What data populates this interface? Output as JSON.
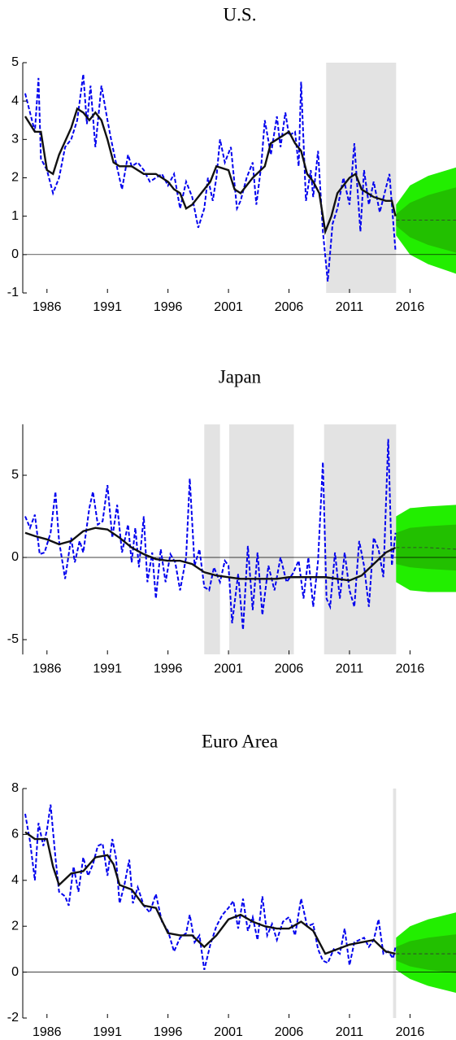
{
  "chart_data": [
    {
      "type": "line",
      "title": "U.S.",
      "xlim": [
        1984,
        2019.8
      ],
      "ylim": [
        -1,
        5
      ],
      "xticks": [
        1986,
        1991,
        1996,
        2001,
        2006,
        2011,
        2016
      ],
      "yticks": [
        -1,
        0,
        1,
        2,
        3,
        4,
        5
      ],
      "reference_line": 0,
      "shade_color": "#e3e3e3",
      "shaded": [
        [
          2009.07,
          2014.85
        ]
      ],
      "series": [
        {
          "color": "#0000ee",
          "style": "dashed",
          "x": [
            1984.2,
            1985,
            1985.3,
            1985.5,
            1986,
            1986.5,
            1987,
            1987.5,
            1988,
            1988.5,
            1989,
            1989.3,
            1989.6,
            1990,
            1990.5,
            1991,
            1991.3,
            1991.7,
            1992.2,
            1992.7,
            1993,
            1993.5,
            1994,
            1994.5,
            1995,
            1995.5,
            1996,
            1996.5,
            1997,
            1997.5,
            1998,
            1998.5,
            1999,
            1999.3,
            1999.7,
            2000,
            2000.3,
            2000.7,
            2001.2,
            2001.7,
            2002,
            2002.5,
            2003,
            2003.3,
            2003.7,
            2004,
            2004.5,
            2005,
            2005.3,
            2005.7,
            2006,
            2006.5,
            2006.8,
            2007,
            2007.4,
            2007.8,
            2008,
            2008.4,
            2008.8,
            2009.2,
            2009.6,
            2010,
            2010.5,
            2011,
            2011.4,
            2011.9,
            2012.2,
            2012.6,
            2013,
            2013.5,
            2013.9,
            2014.3,
            2014.8
          ],
          "values": [
            4.2,
            3.2,
            4.6,
            2.5,
            2.2,
            1.6,
            2.0,
            2.8,
            3.0,
            3.5,
            4.7,
            3.4,
            4.4,
            2.8,
            4.4,
            3.5,
            3.0,
            2.4,
            1.7,
            2.6,
            2.3,
            2.4,
            2.2,
            1.9,
            2.0,
            2.1,
            1.8,
            2.1,
            1.2,
            1.9,
            1.5,
            0.7,
            1.2,
            2.0,
            1.4,
            2.0,
            3.0,
            2.4,
            2.8,
            1.2,
            1.4,
            2.0,
            2.4,
            1.3,
            2.3,
            3.5,
            2.6,
            3.6,
            2.8,
            3.7,
            3.1,
            3.2,
            2.3,
            4.5,
            1.4,
            2.2,
            1.5,
            2.7,
            0.6,
            -0.7,
            0.8,
            1.2,
            2.0,
            1.3,
            2.9,
            0.6,
            2.2,
            1.3,
            1.9,
            1.1,
            1.6,
            2.1,
            0.1
          ]
        },
        {
          "color": "#111111",
          "style": "solid",
          "x": [
            1984.2,
            1985,
            1985.5,
            1986,
            1986.5,
            1987,
            1988,
            1988.5,
            1989,
            1989.5,
            1990,
            1990.5,
            1991,
            1991.5,
            1992,
            1993,
            1994,
            1995,
            1996,
            1996.5,
            1997,
            1997.5,
            1998,
            1999,
            1999.5,
            2000,
            2001,
            2001.5,
            2002,
            2003,
            2004,
            2004.5,
            2005.5,
            2006,
            2006.5,
            2007,
            2007.5,
            2008,
            2008.5,
            2009,
            2009.5,
            2010,
            2011,
            2011.5,
            2012,
            2013,
            2014,
            2014.5,
            2014.8
          ],
          "values": [
            3.6,
            3.2,
            3.2,
            2.2,
            2.1,
            2.6,
            3.3,
            3.8,
            3.7,
            3.5,
            3.7,
            3.5,
            3.0,
            2.4,
            2.3,
            2.3,
            2.1,
            2.1,
            1.9,
            1.7,
            1.6,
            1.2,
            1.3,
            1.7,
            1.9,
            2.3,
            2.2,
            1.7,
            1.6,
            2.0,
            2.3,
            2.9,
            3.1,
            3.2,
            2.9,
            2.7,
            2.1,
            1.9,
            1.6,
            0.6,
            1.0,
            1.6,
            2.0,
            2.1,
            1.7,
            1.5,
            1.4,
            1.4,
            1.0
          ]
        }
      ],
      "forecast": {
        "x": [
          2014.85,
          2016,
          2017.5,
          2019.8
        ],
        "outer_color": "#22ee00",
        "inner_color": "#22c000",
        "outer_upper": [
          1.3,
          1.8,
          2.05,
          2.27
        ],
        "outer_lower": [
          0.5,
          0.0,
          -0.25,
          -0.5
        ],
        "inner_upper": [
          1.05,
          1.35,
          1.55,
          1.75
        ],
        "inner_lower": [
          0.75,
          0.45,
          0.25,
          0.05
        ],
        "median": [
          0.9,
          0.9,
          0.9,
          0.9
        ]
      }
    },
    {
      "type": "line",
      "title": "Japan",
      "xlim": [
        1984,
        2019.8
      ],
      "ylim": [
        -5.9,
        8.1
      ],
      "xticks": [
        1986,
        1991,
        1996,
        2001,
        2006,
        2011,
        2016
      ],
      "yticks": [
        -5,
        0,
        5
      ],
      "reference_line": 0,
      "shade_color": "#e3e3e3",
      "shaded": [
        [
          1999.0,
          2000.3
        ],
        [
          2001.06,
          2006.4
        ],
        [
          2008.9,
          2014.85
        ]
      ],
      "series": [
        {
          "color": "#0000ee",
          "style": "dashed",
          "x": [
            1984.2,
            1984.6,
            1985,
            1985.4,
            1985.8,
            1986.3,
            1986.7,
            1987,
            1987.5,
            1988,
            1988.3,
            1988.7,
            1989,
            1989.5,
            1989.8,
            1990.2,
            1990.6,
            1991,
            1991.4,
            1991.8,
            1992.2,
            1992.7,
            1993,
            1993.3,
            1993.6,
            1994,
            1994.3,
            1994.7,
            1995,
            1995.4,
            1995.8,
            1996.2,
            1996.6,
            1997,
            1997.5,
            1997.8,
            1998.2,
            1998.6,
            1999,
            1999.4,
            1999.8,
            2000.3,
            2000.7,
            2001,
            2001.3,
            2001.8,
            2002.2,
            2002.6,
            2003,
            2003.4,
            2003.8,
            2004.3,
            2004.8,
            2005.3,
            2005.8,
            2006.3,
            2006.8,
            2007.2,
            2007.6,
            2008,
            2008.4,
            2008.8,
            2009.1,
            2009.4,
            2009.8,
            2010.2,
            2010.6,
            2011,
            2011.4,
            2011.8,
            2012.2,
            2012.6,
            2013,
            2013.4,
            2013.8,
            2014.2,
            2014.5,
            2014.8
          ],
          "values": [
            2.5,
            1.8,
            2.6,
            0.2,
            0.3,
            1.5,
            4.0,
            1.0,
            -1.3,
            1.2,
            -0.3,
            1.0,
            0.3,
            3.0,
            4.0,
            2.0,
            2.2,
            4.4,
            1.2,
            3.2,
            0.3,
            2.0,
            -0.3,
            1.8,
            -0.6,
            2.5,
            -1.5,
            0.3,
            -2.5,
            0.5,
            -1.5,
            0.2,
            -0.3,
            -2.0,
            0.0,
            4.8,
            -0.5,
            0.5,
            -1.8,
            -2.0,
            -0.6,
            -1.5,
            -0.2,
            -0.5,
            -4.0,
            -1.0,
            -4.4,
            0.7,
            -3.2,
            0.3,
            -3.5,
            -0.5,
            -2.0,
            0.0,
            -1.5,
            -1.0,
            -0.2,
            -2.5,
            0.0,
            -3.0,
            -0.2,
            5.8,
            -2.5,
            -3.0,
            0.3,
            -2.5,
            0.3,
            -2.0,
            -3.0,
            1.0,
            -0.5,
            -3.0,
            1.2,
            0.5,
            -1.2,
            7.2,
            -0.5,
            1.5
          ]
        },
        {
          "color": "#111111",
          "style": "solid",
          "x": [
            1984.2,
            1985,
            1986,
            1987,
            1988,
            1989,
            1990,
            1991,
            1992,
            1993,
            1994,
            1995,
            1996,
            1997,
            1998,
            1999,
            2000,
            2001,
            2002,
            2003,
            2004,
            2005,
            2006,
            2007,
            2008,
            2009,
            2010,
            2011,
            2012,
            2013,
            2014,
            2014.8
          ],
          "values": [
            1.5,
            1.3,
            1.1,
            0.8,
            1.0,
            1.6,
            1.8,
            1.7,
            1.2,
            0.6,
            0.2,
            -0.1,
            -0.2,
            -0.2,
            -0.4,
            -0.9,
            -1.1,
            -1.2,
            -1.3,
            -1.3,
            -1.3,
            -1.3,
            -1.2,
            -1.2,
            -1.2,
            -1.2,
            -1.3,
            -1.4,
            -1.1,
            -0.4,
            0.3,
            0.6
          ]
        }
      ],
      "forecast": {
        "x": [
          2014.85,
          2016,
          2017.5,
          2019.8
        ],
        "outer_color": "#22ee00",
        "inner_color": "#22c000",
        "outer_upper": [
          2.5,
          3.0,
          3.1,
          3.2
        ],
        "outer_lower": [
          -1.5,
          -2.0,
          -2.1,
          -2.1
        ],
        "inner_upper": [
          1.5,
          1.8,
          1.9,
          2.0
        ],
        "inner_lower": [
          -0.4,
          -0.6,
          -0.7,
          -0.8
        ],
        "median": [
          0.6,
          0.6,
          0.6,
          0.5
        ]
      }
    },
    {
      "type": "line",
      "title": "Euro Area",
      "xlim": [
        1984,
        2019.8
      ],
      "ylim": [
        -2,
        8
      ],
      "xticks": [
        1986,
        1991,
        1996,
        2001,
        2006,
        2011,
        2016
      ],
      "yticks": [
        -2,
        0,
        2,
        4,
        6,
        8
      ],
      "reference_line": 0,
      "shade_color": "#e3e3e3",
      "shaded": [
        [
          2014.6,
          2014.85
        ]
      ],
      "series": [
        {
          "color": "#0000ee",
          "style": "dashed",
          "x": [
            1984.2,
            1984.6,
            1985,
            1985.3,
            1985.7,
            1986,
            1986.3,
            1986.7,
            1987,
            1987.5,
            1987.8,
            1988.2,
            1988.6,
            1989,
            1989.4,
            1989.8,
            1990.2,
            1990.6,
            1991,
            1991.4,
            1991.7,
            1992,
            1992.4,
            1992.8,
            1993.1,
            1993.5,
            1994,
            1994.5,
            1995,
            1995.5,
            1996,
            1996.5,
            1997,
            1997.5,
            1997.8,
            1998.2,
            1998.6,
            1999,
            1999.5,
            2000,
            2000.5,
            2001,
            2001.4,
            2001.8,
            2002.2,
            2002.6,
            2003,
            2003.4,
            2003.8,
            2004.2,
            2004.6,
            2005,
            2005.5,
            2006,
            2006.5,
            2007,
            2007.5,
            2008,
            2008.4,
            2008.8,
            2009.2,
            2009.7,
            2010.2,
            2010.6,
            2011,
            2011.4,
            2011.8,
            2012.2,
            2012.6,
            2013,
            2013.4,
            2013.8,
            2014.2,
            2014.6,
            2014.8
          ],
          "values": [
            6.9,
            5.7,
            4.0,
            6.5,
            5.5,
            6.2,
            7.3,
            5.0,
            3.5,
            3.3,
            2.9,
            4.6,
            3.5,
            5.0,
            4.2,
            4.7,
            5.5,
            5.6,
            4.2,
            5.8,
            5.0,
            3.0,
            3.8,
            4.9,
            3.0,
            3.7,
            2.9,
            2.6,
            3.4,
            2.2,
            1.8,
            0.9,
            1.5,
            1.7,
            2.5,
            1.3,
            1.6,
            0.1,
            1.2,
            2.0,
            2.5,
            2.8,
            3.1,
            1.9,
            3.2,
            1.8,
            2.4,
            1.4,
            3.3,
            1.6,
            2.1,
            1.4,
            2.2,
            2.4,
            1.6,
            3.2,
            2.0,
            2.1,
            1.0,
            0.5,
            0.4,
            1.0,
            0.8,
            1.9,
            0.3,
            1.3,
            1.4,
            1.5,
            1.1,
            1.4,
            2.3,
            0.8,
            0.9,
            0.6,
            1.1
          ]
        },
        {
          "color": "#111111",
          "style": "solid",
          "x": [
            1984.2,
            1985,
            1986,
            1986.5,
            1987,
            1988,
            1989,
            1990,
            1991,
            1991.5,
            1992,
            1993,
            1994,
            1995,
            1996,
            1997,
            1998,
            1999,
            2000,
            2001,
            2002,
            2003,
            2004,
            2005,
            2006,
            2007,
            2008,
            2009,
            2010,
            2011,
            2012,
            2013,
            2014,
            2014.8
          ],
          "values": [
            6.1,
            5.8,
            5.8,
            4.6,
            3.8,
            4.3,
            4.4,
            5.0,
            5.1,
            4.7,
            3.8,
            3.6,
            2.9,
            2.8,
            1.7,
            1.6,
            1.6,
            1.1,
            1.6,
            2.3,
            2.5,
            2.2,
            2.0,
            1.9,
            1.9,
            2.2,
            1.8,
            0.8,
            1.0,
            1.2,
            1.3,
            1.4,
            0.9,
            0.8
          ]
        }
      ],
      "forecast": {
        "x": [
          2014.85,
          2016,
          2017.5,
          2019.8
        ],
        "outer_color": "#22ee00",
        "inner_color": "#22c000",
        "outer_upper": [
          1.5,
          2.0,
          2.3,
          2.6
        ],
        "outer_lower": [
          0.1,
          -0.3,
          -0.6,
          -0.9
        ],
        "inner_upper": [
          1.1,
          1.35,
          1.5,
          1.65
        ],
        "inner_lower": [
          0.5,
          0.25,
          0.1,
          -0.05
        ],
        "median": [
          0.8,
          0.8,
          0.8,
          0.8
        ]
      }
    }
  ]
}
